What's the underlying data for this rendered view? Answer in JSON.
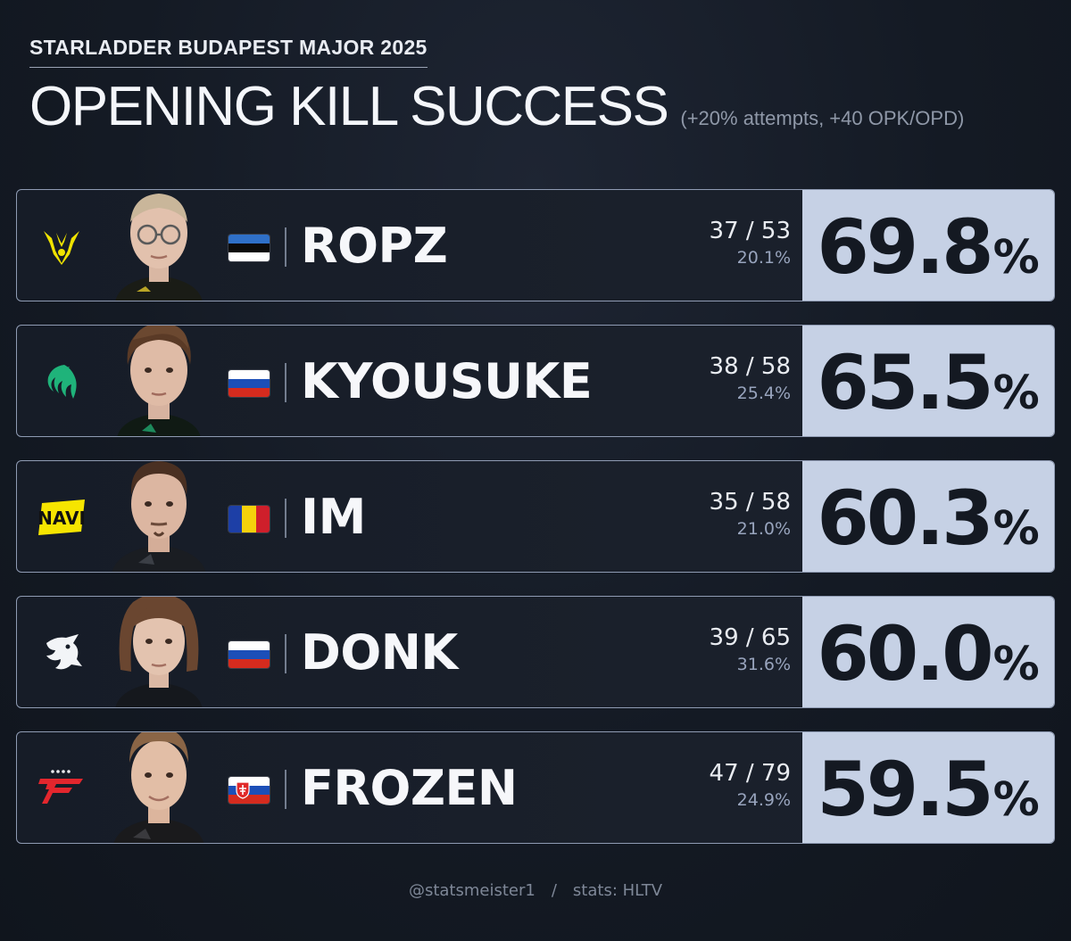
{
  "header": {
    "subtitle": "STARLADDER BUDAPEST MAJOR 2025",
    "title": "OPENING KILL SUCCESS",
    "criteria": "(+20% attempts, +40 OPK/OPD)"
  },
  "chart_data": {
    "type": "table",
    "title": "OPENING KILL SUCCESS",
    "subtitle": "STARLADDER BUDAPEST MAJOR 2025",
    "columns": [
      "team",
      "player",
      "country",
      "opening kills / opening duels",
      "attempts",
      "success"
    ],
    "rows": [
      {
        "team": "Vitality",
        "player": "ROPZ",
        "country": "Estonia",
        "ratio": "37 / 53",
        "kills": 37,
        "duels": 53,
        "attempts": "20.1%",
        "success": "69.8",
        "success_value": 69.8
      },
      {
        "team": "Falcons",
        "player": "KYOUSUKE",
        "country": "Russia",
        "ratio": "38 / 58",
        "kills": 38,
        "duels": 58,
        "attempts": "25.4%",
        "success": "65.5",
        "success_value": 65.5
      },
      {
        "team": "NAVI",
        "player": "IM",
        "country": "Romania",
        "ratio": "35 / 58",
        "kills": 35,
        "duels": 58,
        "attempts": "21.0%",
        "success": "60.3",
        "success_value": 60.3
      },
      {
        "team": "Spirit",
        "player": "DONK",
        "country": "Russia",
        "ratio": "39 / 65",
        "kills": 39,
        "duels": 65,
        "attempts": "31.6%",
        "success": "60.0",
        "success_value": 60.0
      },
      {
        "team": "FaZe",
        "player": "FROZEN",
        "country": "Slovakia",
        "ratio": "47 / 79",
        "kills": 47,
        "duels": 79,
        "attempts": "24.9%",
        "success": "59.5",
        "success_value": 59.5
      }
    ],
    "percent_sign": "%"
  },
  "colors": {
    "background": "#141a24",
    "value_box": "#c6d1e5",
    "row_border": "#8f9bb3"
  },
  "footer": {
    "handle": "@statsmeister1",
    "separator": "/",
    "source": "stats: HLTV"
  }
}
